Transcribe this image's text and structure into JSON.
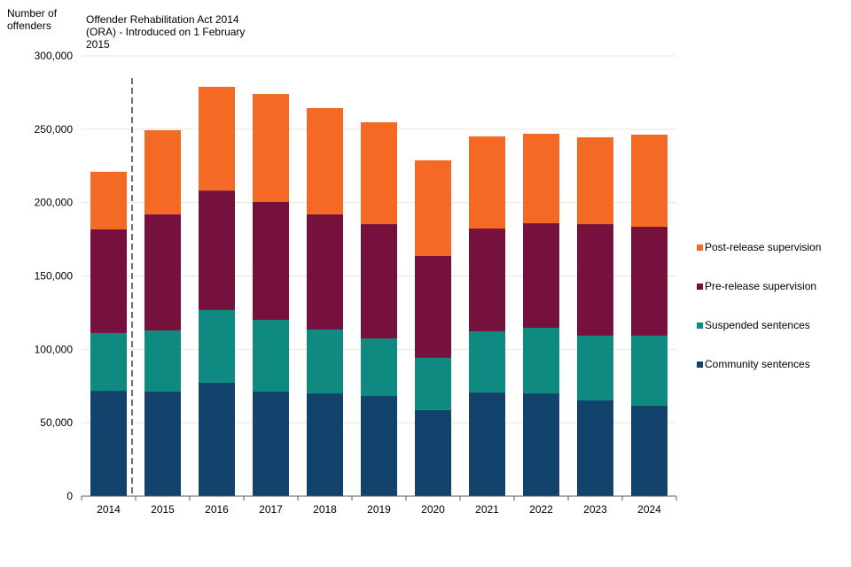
{
  "chart_data": {
    "type": "bar",
    "stacked": true,
    "title": "",
    "ylabel": "Number of offenders",
    "xlabel": "",
    "ylim": [
      0,
      300000
    ],
    "yticks": [
      0,
      50000,
      100000,
      150000,
      200000,
      250000,
      300000
    ],
    "ytick_labels": [
      "0",
      "50,000",
      "100,000",
      "150,000",
      "200,000",
      "250,000",
      "300,000"
    ],
    "grid": true,
    "legend_position": "right",
    "categories": [
      "2014",
      "2015",
      "2016",
      "2017",
      "2018",
      "2019",
      "2020",
      "2021",
      "2022",
      "2023",
      "2024"
    ],
    "series": [
      {
        "name": "Community sentences",
        "color": "#12436D",
        "values": [
          71800,
          71200,
          77300,
          71200,
          70000,
          68200,
          58600,
          70600,
          70000,
          65200,
          61600
        ]
      },
      {
        "name": "Suspended sentences",
        "color": "#0E8A80",
        "values": [
          39300,
          41700,
          49500,
          48900,
          43500,
          39200,
          35600,
          41700,
          44700,
          44100,
          47700
        ]
      },
      {
        "name": "Pre-release supervision",
        "color": "#76103C",
        "values": [
          70600,
          79100,
          81400,
          80300,
          78500,
          77900,
          69400,
          70000,
          71200,
          76000,
          74200
        ]
      },
      {
        "name": "Post-release supervision",
        "color": "#F46A25",
        "values": [
          39300,
          57300,
          70700,
          73600,
          72400,
          69400,
          65200,
          62800,
          61000,
          59200,
          62800
        ]
      }
    ],
    "legend_order": [
      "Post-release supervision",
      "Pre-release supervision",
      "Suspended sentences",
      "Community sentences"
    ],
    "annotations": [
      {
        "text": "Offender Rehabilitation Act 2014 (ORA) - Introduced on 1 February 2015",
        "marker": "dashed vertical line between 2014 and 2015"
      }
    ]
  },
  "labels": {
    "y_axis_title": "Number of offenders",
    "annotation": "Offender Rehabilitation Act 2014 (ORA) - Introduced on 1 February 2015"
  },
  "colors": {
    "grid": "#E8E6DE",
    "axis": "#595959",
    "dashed_line": "#6E6E6E"
  }
}
